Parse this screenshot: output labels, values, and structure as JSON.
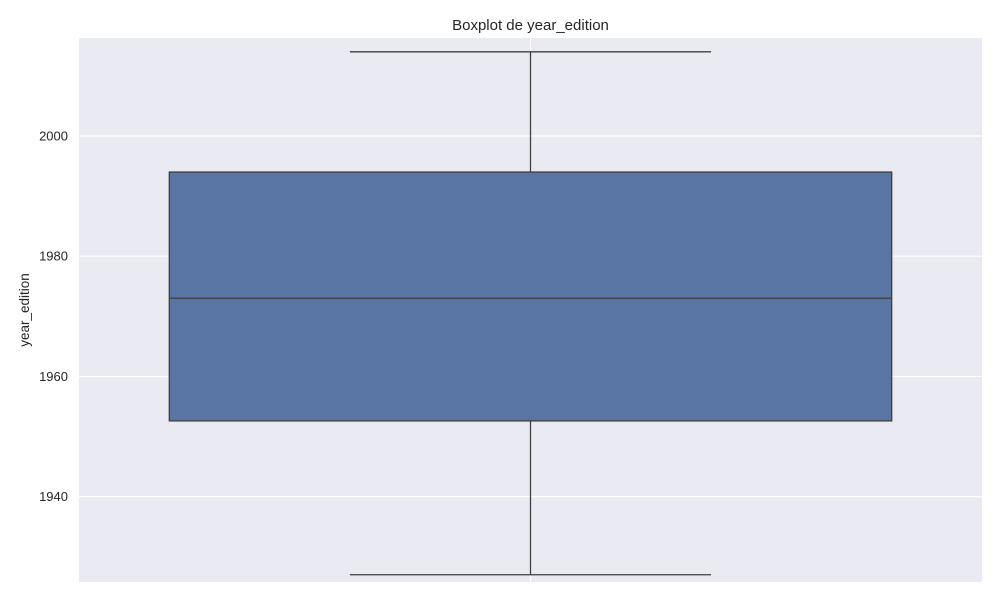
{
  "chart_data": {
    "type": "box",
    "title": "Boxplot de year_edition",
    "xlabel": "",
    "ylabel": "year_edition",
    "ylim": [
      1925.8,
      2016.3
    ],
    "yticks": [
      1940,
      1960,
      1980,
      2000
    ],
    "grid": true,
    "box": {
      "whisker_low": 1927,
      "q1": 1952.6,
      "median": 1973,
      "q3": 1994,
      "whisker_high": 2014
    },
    "colors": {
      "background": "#eaeaf2",
      "grid": "#ffffff",
      "box_fill": "#5975a4",
      "line": "#3f3f3f",
      "text": "#262626"
    }
  }
}
